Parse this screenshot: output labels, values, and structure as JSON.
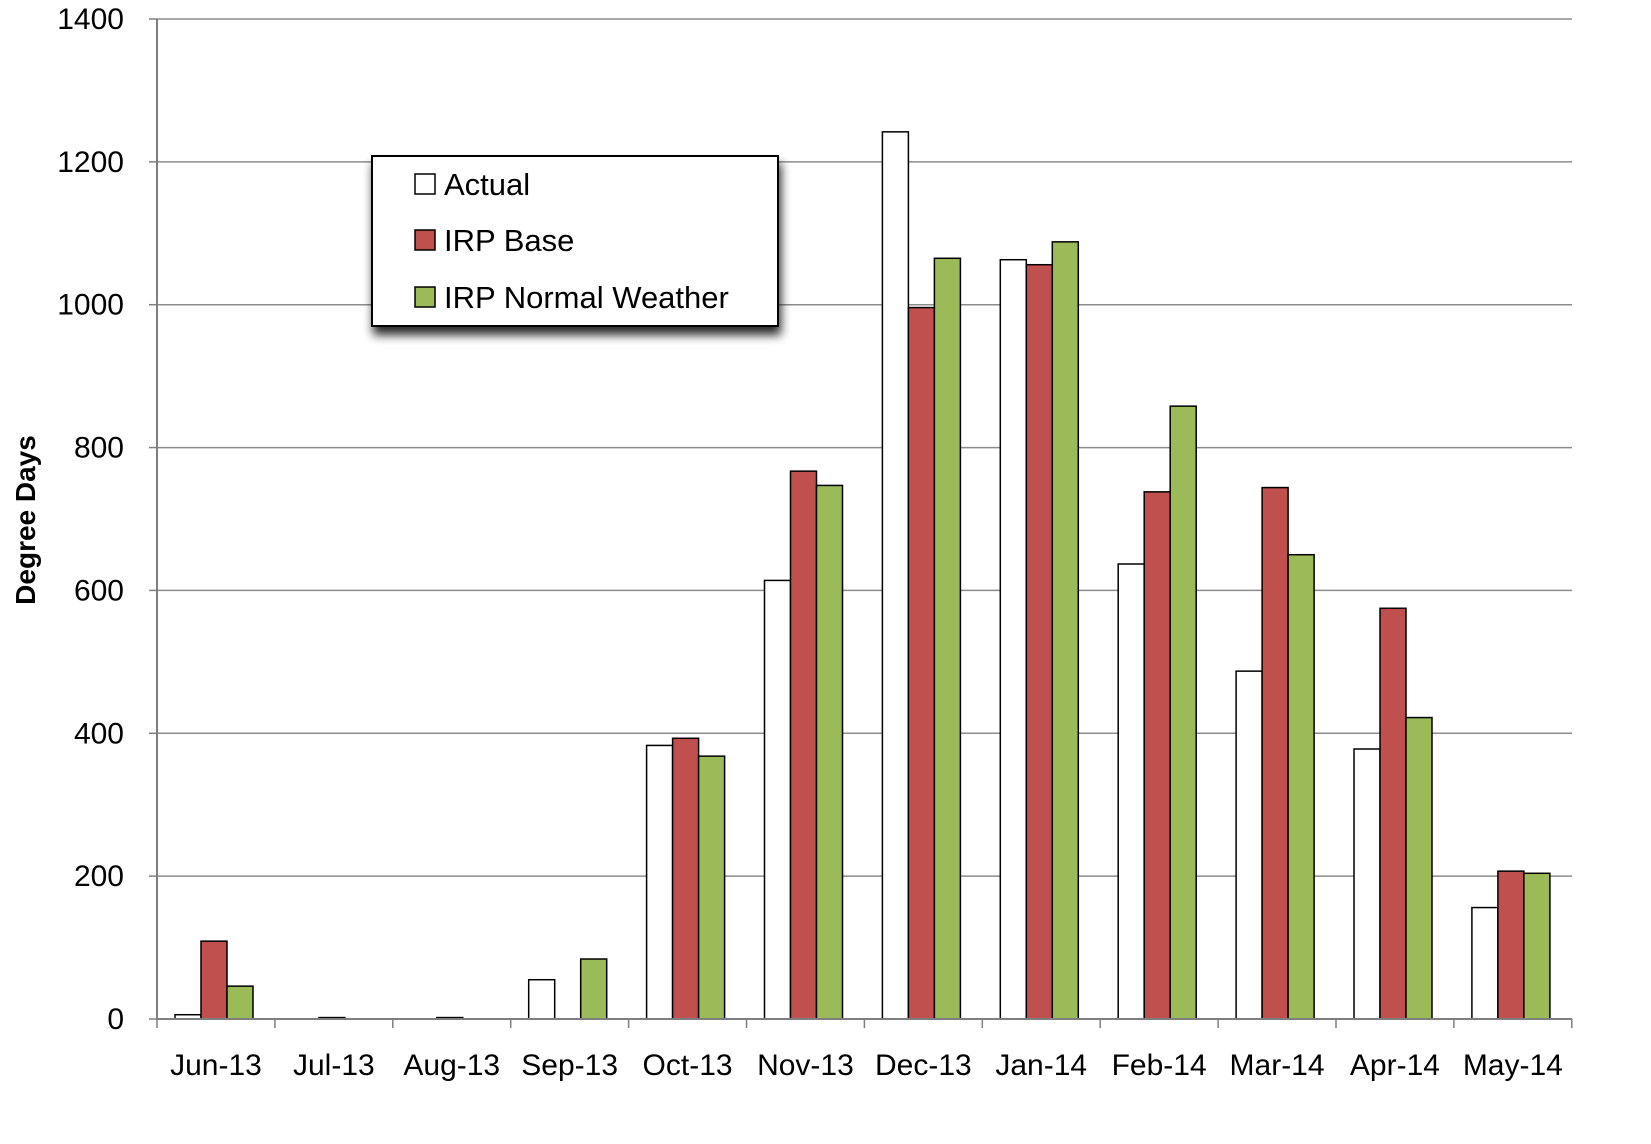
{
  "chart_data": {
    "type": "bar",
    "title": "",
    "xlabel": "",
    "ylabel": "Degree Days",
    "ylim": [
      0,
      1400
    ],
    "yticks": [
      0,
      200,
      400,
      600,
      800,
      1000,
      1200,
      1400
    ],
    "grid": true,
    "legend_position": "upper-left",
    "categories": [
      "Jun-13",
      "Jul-13",
      "Aug-13",
      "Sep-13",
      "Oct-13",
      "Nov-13",
      "Dec-13",
      "Jan-14",
      "Feb-14",
      "Mar-14",
      "Apr-14",
      "May-14"
    ],
    "series": [
      {
        "name": "Actual",
        "color": "#ffffff",
        "values": [
          6,
          0,
          0,
          55,
          383,
          614,
          1242,
          1063,
          637,
          487,
          378,
          156
        ]
      },
      {
        "name": "IRP Base",
        "color": "#c0504d",
        "values": [
          109,
          2,
          2,
          0,
          393,
          767,
          996,
          1056,
          738,
          744,
          575,
          207
        ]
      },
      {
        "name": "IRP Normal Weather",
        "color": "#9bbb59",
        "values": [
          46,
          0,
          0,
          84,
          368,
          747,
          1065,
          1088,
          858,
          650,
          422,
          204
        ]
      }
    ]
  }
}
